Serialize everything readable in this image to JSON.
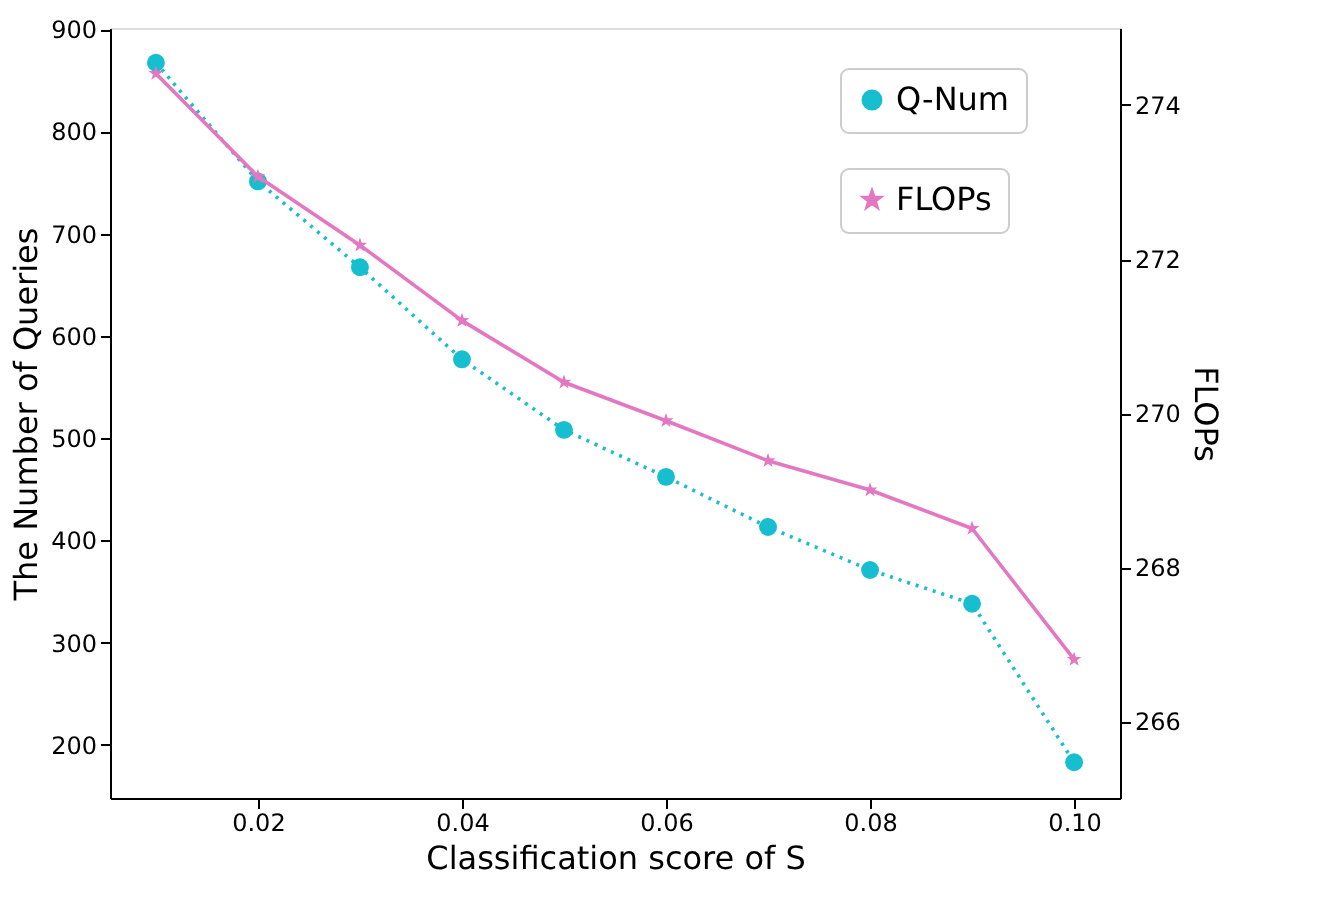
{
  "chart_data": {
    "type": "line",
    "xlabel": "Classification score of S",
    "ylabel": "The Number of Queries",
    "y2label": "FLOPs",
    "x": [
      0.01,
      0.02,
      0.03,
      0.04,
      0.05,
      0.06,
      0.07,
      0.08,
      0.09,
      0.1
    ],
    "series": [
      {
        "name": "Q-Num",
        "color": "#17becf",
        "marker": "circle",
        "line_style": "dotted",
        "values": [
          867,
          751,
          667,
          577,
          508,
          462,
          413,
          371,
          338,
          183
        ]
      },
      {
        "name": "FLOPs",
        "color": "#e377c2",
        "marker": "star",
        "line_style": "solid",
        "axis": "y2",
        "values": [
          274.41,
          273.07,
          272.18,
          271.2,
          270.4,
          269.9,
          269.38,
          269.0,
          268.5,
          266.8
        ]
      }
    ],
    "xlim": [
      0.0055,
      0.1045
    ],
    "xticks": [
      {
        "value": 0.02,
        "label": "0.02"
      },
      {
        "value": 0.04,
        "label": "0.04"
      },
      {
        "value": 0.06,
        "label": "0.06"
      },
      {
        "value": 0.08,
        "label": "0.08"
      },
      {
        "value": 0.1,
        "label": "0.10"
      }
    ],
    "ylim": [
      148,
      901
    ],
    "yticks": [
      200,
      300,
      400,
      500,
      600,
      700,
      800,
      900
    ],
    "y2lim": [
      265,
      275
    ],
    "y2ticks": [
      266,
      268,
      270,
      272,
      274
    ],
    "grid": false,
    "legend": "top right"
  }
}
